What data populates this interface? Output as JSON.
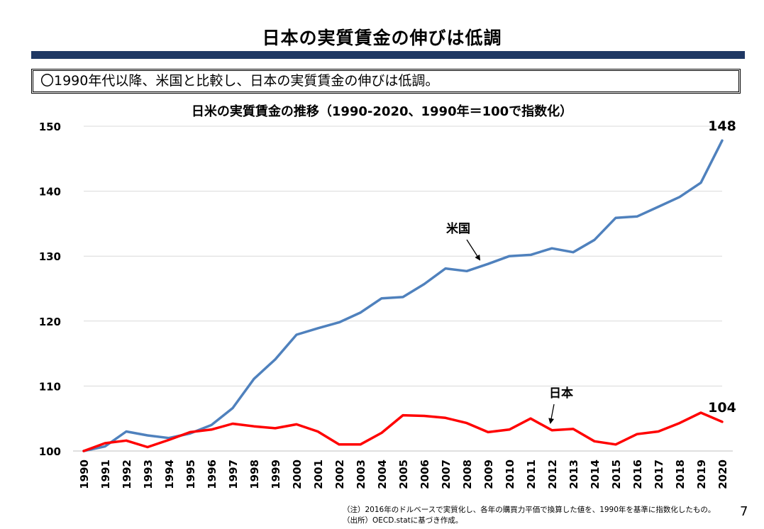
{
  "slide": {
    "title": "日本の実質賃金の伸びは低調",
    "summary": "〇1990年代以降、米国と比較し、日本の実質賃金の伸びは低調。",
    "note": "（注）2016年のドルベースで実質化し、各年の購買力平価で換算した値を、1990年を基準に指数化したもの。",
    "source": "（出所）OECD.statに基づき作成。",
    "page_number": "7"
  },
  "colors": {
    "title_bar": "#1f3864",
    "us_line": "#4f81bd",
    "japan_line": "#ff0000",
    "grid": "#d9d9d9"
  },
  "chart_data": {
    "type": "line",
    "title": "日米の実質賃金の推移（1990-2020、1990年＝100で指数化）",
    "x": [
      "1990",
      "1991",
      "1992",
      "1993",
      "1994",
      "1995",
      "1996",
      "1997",
      "1998",
      "1999",
      "2000",
      "2001",
      "2002",
      "2003",
      "2004",
      "2005",
      "2006",
      "2007",
      "2008",
      "2009",
      "2010",
      "2011",
      "2012",
      "2013",
      "2014",
      "2015",
      "2016",
      "2017",
      "2018",
      "2019",
      "2020"
    ],
    "ylim": [
      100,
      150
    ],
    "yticks": [
      100,
      110,
      120,
      130,
      140,
      150
    ],
    "grid": true,
    "series": [
      {
        "name": "米国",
        "color": "#4f81bd",
        "values": [
          100,
          100.7,
          103,
          102.4,
          102,
          102.7,
          104,
          106.6,
          111.1,
          114.1,
          117.9,
          118.9,
          119.8,
          121.3,
          123.5,
          123.7,
          125.7,
          128.1,
          127.7,
          128.8,
          130,
          130.2,
          131.2,
          130.6,
          132.5,
          135.9,
          136.1,
          137.6,
          139.1,
          141.3,
          147.8
        ],
        "end_label": "148"
      },
      {
        "name": "日本",
        "color": "#ff0000",
        "values": [
          100,
          101.2,
          101.6,
          100.6,
          101.7,
          102.9,
          103.3,
          104.2,
          103.8,
          103.5,
          104.1,
          103,
          101,
          101,
          102.8,
          105.5,
          105.4,
          105.1,
          104.3,
          102.9,
          103.3,
          105,
          103.2,
          103.4,
          101.5,
          101,
          102.6,
          103,
          104.3,
          105.9,
          104.5
        ],
        "end_label": "104"
      }
    ]
  }
}
